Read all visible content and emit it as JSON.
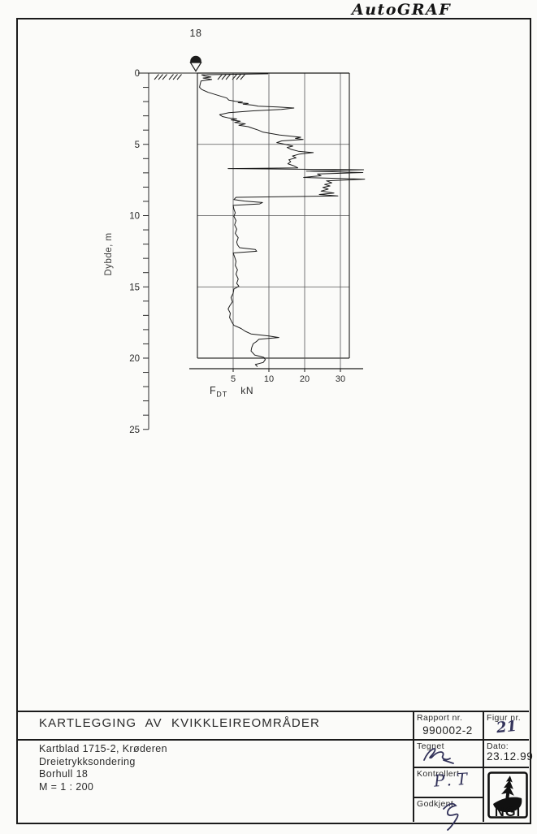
{
  "header": {
    "brand": "AutoGRAF"
  },
  "chart_data": {
    "type": "line",
    "borehole_label": "18",
    "ylabel": "Dybde, m",
    "x_axis": {
      "symbol": "F",
      "subscript": "DT",
      "unit": "kN",
      "ticks": [
        5,
        10,
        20,
        30
      ],
      "scale_note": "linear 0-10 kN, compressed 2x from 10-30 kN, spikes run off-scale past 30"
    },
    "y_axis": {
      "tick_step_m": 1,
      "labeled_ticks": [
        0,
        5,
        10,
        15,
        20,
        25
      ],
      "max_m": 25,
      "sounding_end_m": 20.7
    },
    "series": [
      {
        "name": "Dreietrykksondering F_DT",
        "points": [
          [
            0.05,
            9.9
          ],
          [
            0.12,
            0.6
          ],
          [
            0.2,
            1.0
          ],
          [
            0.28,
            1.9
          ],
          [
            0.35,
            0.8
          ],
          [
            0.45,
            2.0
          ],
          [
            0.55,
            0.5
          ],
          [
            0.75,
            0.4
          ],
          [
            1.0,
            0.3
          ],
          [
            1.15,
            0.6
          ],
          [
            1.35,
            1.5
          ],
          [
            1.55,
            2.8
          ],
          [
            1.75,
            4.1
          ],
          [
            1.9,
            4.4
          ],
          [
            1.98,
            5.3
          ],
          [
            2.03,
            6.3
          ],
          [
            2.08,
            5.7
          ],
          [
            2.13,
            7.1
          ],
          [
            2.18,
            6.4
          ],
          [
            2.25,
            7.8
          ],
          [
            2.32,
            8.5
          ],
          [
            2.38,
            12.5
          ],
          [
            2.45,
            17.0
          ],
          [
            2.55,
            13.5
          ],
          [
            2.65,
            7.8
          ],
          [
            2.78,
            4.4
          ],
          [
            2.92,
            3.1
          ],
          [
            3.05,
            3.5
          ],
          [
            3.15,
            4.4
          ],
          [
            3.22,
            5.5
          ],
          [
            3.28,
            4.7
          ],
          [
            3.38,
            6.0
          ],
          [
            3.46,
            5.2
          ],
          [
            3.56,
            6.7
          ],
          [
            3.66,
            5.8
          ],
          [
            3.76,
            7.1
          ],
          [
            3.88,
            7.8
          ],
          [
            4.0,
            8.5
          ],
          [
            4.15,
            9.2
          ],
          [
            4.35,
            13.0
          ],
          [
            4.5,
            18.9
          ],
          [
            4.58,
            17.4
          ],
          [
            4.66,
            19.6
          ],
          [
            4.76,
            13.6
          ],
          [
            4.88,
            12.2
          ],
          [
            5.0,
            14.6
          ],
          [
            5.12,
            16.7
          ],
          [
            5.22,
            15.1
          ],
          [
            5.35,
            16.2
          ],
          [
            5.48,
            18.2
          ],
          [
            5.58,
            22.4
          ],
          [
            5.68,
            18.6
          ],
          [
            5.82,
            16.6
          ],
          [
            5.95,
            17.6
          ],
          [
            6.08,
            15.6
          ],
          [
            6.22,
            16.1
          ],
          [
            6.36,
            15.3
          ],
          [
            6.5,
            16.9
          ],
          [
            6.65,
            18.1
          ],
          [
            6.7,
            4.3
          ],
          [
            6.78,
            36.5
          ],
          [
            6.88,
            20.5
          ],
          [
            6.98,
            36.3
          ],
          [
            7.08,
            23.6
          ],
          [
            7.2,
            24.6
          ],
          [
            7.32,
            19.7
          ],
          [
            7.44,
            36.8
          ],
          [
            7.56,
            26.1
          ],
          [
            7.7,
            27.6
          ],
          [
            7.82,
            25.6
          ],
          [
            7.92,
            27.1
          ],
          [
            8.02,
            25.1
          ],
          [
            8.14,
            26.6
          ],
          [
            8.28,
            24.6
          ],
          [
            8.42,
            28.2
          ],
          [
            8.52,
            24.1
          ],
          [
            8.62,
            29.3
          ],
          [
            8.72,
            5.4
          ],
          [
            8.88,
            5.1
          ],
          [
            8.98,
            6.6
          ],
          [
            9.08,
            9.1
          ],
          [
            9.18,
            8.7
          ],
          [
            9.28,
            5.0
          ],
          [
            9.55,
            5.1
          ],
          [
            9.8,
            5.3
          ],
          [
            10.05,
            5.1
          ],
          [
            10.35,
            5.4
          ],
          [
            10.65,
            5.2
          ],
          [
            10.95,
            5.5
          ],
          [
            11.25,
            5.3
          ],
          [
            11.55,
            5.7
          ],
          [
            11.85,
            5.5
          ],
          [
            12.05,
            5.6
          ],
          [
            12.25,
            5.9
          ],
          [
            12.38,
            8.1
          ],
          [
            12.5,
            8.3
          ],
          [
            12.62,
            5.0
          ],
          [
            12.9,
            5.2
          ],
          [
            13.2,
            5.4
          ],
          [
            13.5,
            5.3
          ],
          [
            13.8,
            5.6
          ],
          [
            14.1,
            5.4
          ],
          [
            14.45,
            5.7
          ],
          [
            14.75,
            5.5
          ],
          [
            14.95,
            5.8
          ],
          [
            15.15,
            5.1
          ],
          [
            15.45,
            5.0
          ],
          [
            15.75,
            4.7
          ],
          [
            16.05,
            4.9
          ],
          [
            16.35,
            4.5
          ],
          [
            16.55,
            4.3
          ],
          [
            16.85,
            4.6
          ],
          [
            17.15,
            4.5
          ],
          [
            17.45,
            4.8
          ],
          [
            17.7,
            5.1
          ],
          [
            17.92,
            6.1
          ],
          [
            18.12,
            6.7
          ],
          [
            18.3,
            7.5
          ],
          [
            18.45,
            10.0
          ],
          [
            18.55,
            12.8
          ],
          [
            18.68,
            8.6
          ],
          [
            18.82,
            8.3
          ],
          [
            19.0,
            7.8
          ],
          [
            19.25,
            7.6
          ],
          [
            19.5,
            7.5
          ],
          [
            19.78,
            8.0
          ],
          [
            19.95,
            9.3
          ],
          [
            20.1,
            9.5
          ],
          [
            20.3,
            9.2
          ],
          [
            20.45,
            8.1
          ],
          [
            20.6,
            8.4
          ]
        ]
      }
    ]
  },
  "title_block": {
    "project_title": "KARTLEGGING AV KVIKKLEIREOMRÅDER",
    "lines": [
      "Kartblad 1715-2, Krøderen",
      "Dreietrykksondering",
      "Borhull 18",
      "M = 1 : 200"
    ],
    "rapport": {
      "label": "Rapport nr.",
      "value": "990002-2"
    },
    "figur": {
      "label": "Figur nr.",
      "value": "21"
    },
    "tegnet": {
      "label": "Tegnet"
    },
    "dato": {
      "label": "Dato:",
      "value": "23.12.99"
    },
    "kontrollert": {
      "label": "Kontrollert",
      "value": "P.T"
    },
    "godkjent": {
      "label": "Godkjent"
    },
    "logo": {
      "text": "NGI"
    }
  }
}
